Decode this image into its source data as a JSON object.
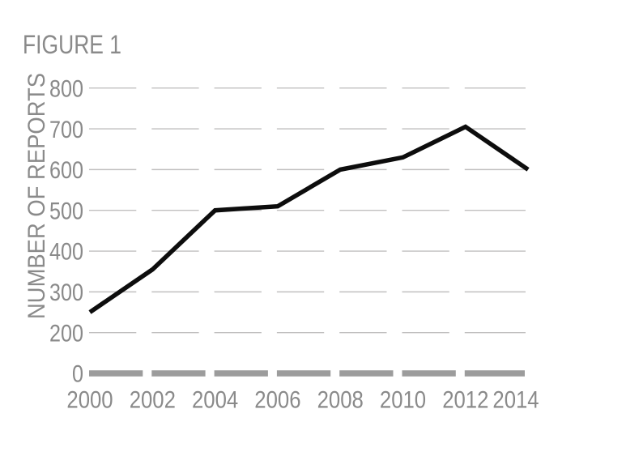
{
  "figure": {
    "title": "FIGURE 1"
  },
  "colors": {
    "background": "#ffffff",
    "text_gray": "#8a8a8a",
    "gridline": "#c0bfbf",
    "baseline": "#9c9c9c",
    "data_line": "#0d0d0d"
  },
  "chart_data": {
    "type": "line",
    "title": "FIGURE 1",
    "xlabel": "",
    "ylabel": "NUMBER OF REPORTS",
    "x": [
      2000,
      2002,
      2004,
      2006,
      2008,
      2010,
      2012,
      2014
    ],
    "values": [
      250,
      355,
      500,
      510,
      600,
      630,
      705,
      600
    ],
    "x_tick_labels": [
      "2000",
      "2002",
      "2004",
      "2006",
      "2008",
      "2010",
      "2012",
      "2014"
    ],
    "y_tick_labels": [
      "0",
      "200",
      "300",
      "400",
      "500",
      "600",
      "700",
      "800"
    ],
    "y_ticks": [
      0,
      200,
      300,
      400,
      500,
      600,
      700,
      800
    ],
    "ylim": [
      0,
      800
    ],
    "axis_note": "y axis is compressed below 200 (no 100 tick; 0 sits one step below 200)",
    "grid": "horizontal dashed gridlines on",
    "baseline_style": "thick gray dashed segments at y=0",
    "legend": "none",
    "markers": "none",
    "line_color": "#0d0d0d"
  }
}
